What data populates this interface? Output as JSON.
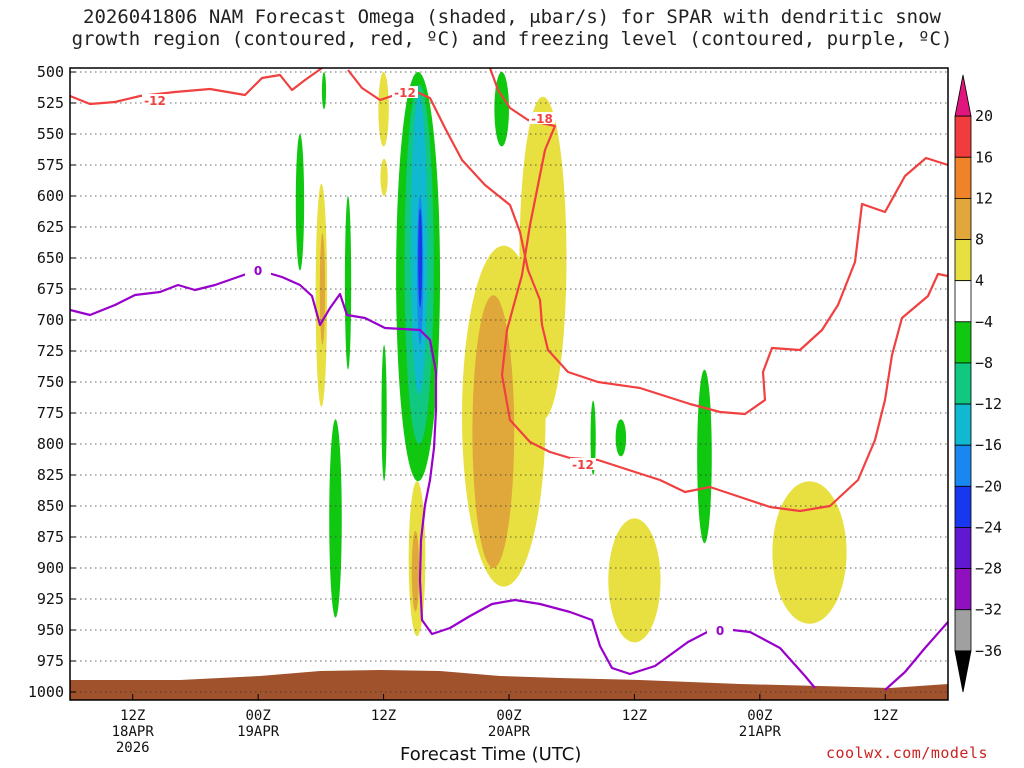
{
  "title": {
    "line1": "2026041806 NAM Forecast Omega (shaded, μbar/s) for SPAR with dendritic snow",
    "line2": "growth region (contoured, red, ºC) and freezing level (contoured, purple, ºC)"
  },
  "xlabel": "Forecast Time (UTC)",
  "credit": "coolwx.com/models",
  "colors": {
    "dgz_contour": "#f04040",
    "freezing_contour": "#9900cc",
    "terrain": "#a0522d"
  },
  "chart_data": {
    "type": "heatmap",
    "y_axis": {
      "label": "",
      "scale": "pressure",
      "range": [
        1000,
        500
      ],
      "ticks": [
        "500",
        "525",
        "550",
        "575",
        "600",
        "625",
        "650",
        "675",
        "700",
        "725",
        "750",
        "775",
        "800",
        "825",
        "850",
        "875",
        "900",
        "925",
        "950",
        "975",
        "1000"
      ]
    },
    "x_axis": {
      "label": "Forecast Time (UTC)",
      "range_hours": [
        0,
        84
      ],
      "ticks": [
        {
          "hour": 6,
          "lines": [
            "12Z",
            "18APR",
            "2026"
          ]
        },
        {
          "hour": 18,
          "lines": [
            "00Z",
            "19APR"
          ]
        },
        {
          "hour": 30,
          "lines": [
            "12Z"
          ]
        },
        {
          "hour": 42,
          "lines": [
            "00Z",
            "20APR"
          ]
        },
        {
          "hour": 54,
          "lines": [
            "12Z"
          ]
        },
        {
          "hour": 66,
          "lines": [
            "00Z",
            "21APR"
          ]
        },
        {
          "hour": 78,
          "lines": [
            "12Z"
          ]
        }
      ]
    },
    "grid": "dotted horizontal",
    "colorbar": {
      "labels": [
        "20",
        "16",
        "12",
        "8",
        "4",
        "−4",
        "−8",
        "−12",
        "−16",
        "−20",
        "−24",
        "−28",
        "−32",
        "−36"
      ],
      "colors": [
        "#e0157e",
        "#f03c3c",
        "#f0822a",
        "#e0a83a",
        "#e8e040",
        "#ffffff",
        "#10c810",
        "#10c880",
        "#10b8d0",
        "#1888f0",
        "#1838f0",
        "#6018d0",
        "#9010c0",
        "#a0a0a0",
        "#000000"
      ]
    },
    "contour_labels": [
      {
        "text": "-12",
        "color": "#f04040"
      },
      {
        "text": "-12",
        "color": "#f04040"
      },
      {
        "text": "-18",
        "color": "#f04040"
      },
      {
        "text": "-12",
        "color": "#f04040"
      },
      {
        "text": "0",
        "color": "#9900cc"
      },
      {
        "text": "0",
        "color": "#9900cc"
      }
    ],
    "shaded_regions": [
      {
        "name": "omega-yellow-a",
        "category": "4 to 8",
        "hour_range": [
          23.5,
          24.6
        ],
        "p_range": [
          770,
          590
        ]
      },
      {
        "name": "omega-orange-a",
        "category": "8 to 12",
        "hour_range": [
          23.9,
          24.4
        ],
        "p_range": [
          720,
          630
        ]
      },
      {
        "name": "omega-green-a",
        "category": "-4 to -8",
        "hour_range": [
          21.6,
          22.4
        ],
        "p_range": [
          660,
          550
        ]
      },
      {
        "name": "omega-green-b",
        "category": "-4 to -8",
        "hour_range": [
          26.3,
          26.9
        ],
        "p_range": [
          740,
          600
        ]
      },
      {
        "name": "omega-green-c",
        "category": "-4 to -8",
        "hour_range": [
          24.1,
          24.5
        ],
        "p_range": [
          530,
          500
        ]
      },
      {
        "name": "omega-green-d",
        "category": "-4 to -8",
        "hour_range": [
          24.8,
          26.0
        ],
        "p_range": [
          940,
          780
        ]
      },
      {
        "name": "omega-yellow-b",
        "category": "4 to 8",
        "hour_range": [
          29.5,
          30.5
        ],
        "p_range": [
          560,
          500
        ]
      },
      {
        "name": "omega-yellow-c",
        "category": "4 to 8",
        "hour_range": [
          29.7,
          30.4
        ],
        "p_range": [
          600,
          570
        ]
      },
      {
        "name": "omega-green-e",
        "category": "-4 to -8",
        "hour_range": [
          29.8,
          30.3
        ],
        "p_range": [
          830,
          720
        ]
      },
      {
        "name": "omega-core-green",
        "category": "-4 to -8",
        "hour_range": [
          31.2,
          35.4
        ],
        "p_range": [
          830,
          500
        ]
      },
      {
        "name": "omega-core-teal",
        "category": "-8 to -12",
        "hour_range": [
          32.0,
          34.8
        ],
        "p_range": [
          800,
          510
        ]
      },
      {
        "name": "omega-core-cyan",
        "category": "-12 to -16",
        "hour_range": [
          32.6,
          34.2
        ],
        "p_range": [
          760,
          520
        ]
      },
      {
        "name": "omega-core-blue",
        "category": "-16 to -20",
        "hour_range": [
          33.2,
          33.8
        ],
        "p_range": [
          720,
          600
        ]
      },
      {
        "name": "omega-core-dblue",
        "category": "-20 to -24",
        "hour_range": [
          33.4,
          33.6
        ],
        "p_range": [
          690,
          610
        ]
      },
      {
        "name": "omega-yellow-d",
        "category": "4 to 8",
        "hour_range": [
          32.4,
          34.0
        ],
        "p_range": [
          955,
          830
        ]
      },
      {
        "name": "omega-orange-d",
        "category": "8 to 12",
        "hour_range": [
          32.7,
          33.4
        ],
        "p_range": [
          935,
          870
        ]
      },
      {
        "name": "omega-yellow-e",
        "category": "4 to 8",
        "hour_range": [
          37.5,
          45.5
        ],
        "p_range": [
          915,
          640
        ]
      },
      {
        "name": "omega-orange-e",
        "category": "8 to 12",
        "hour_range": [
          38.5,
          42.5
        ],
        "p_range": [
          900,
          680
        ]
      },
      {
        "name": "omega-yellow-f",
        "category": "4 to 8",
        "hour_range": [
          43.0,
          47.5
        ],
        "p_range": [
          780,
          520
        ]
      },
      {
        "name": "omega-green-f",
        "category": "-4 to -8",
        "hour_range": [
          40.6,
          42.0
        ],
        "p_range": [
          560,
          500
        ]
      },
      {
        "name": "omega-green-g",
        "category": "-4 to -8",
        "hour_range": [
          49.8,
          50.3
        ],
        "p_range": [
          825,
          765
        ]
      },
      {
        "name": "omega-green-h",
        "category": "-4 to -8",
        "hour_range": [
          52.2,
          53.2
        ],
        "p_range": [
          810,
          780
        ]
      },
      {
        "name": "omega-yellow-g",
        "category": "4 to 8",
        "hour_range": [
          51.5,
          56.5
        ],
        "p_range": [
          960,
          860
        ]
      },
      {
        "name": "omega-green-i",
        "category": "-4 to -8",
        "hour_range": [
          60.0,
          61.4
        ],
        "p_range": [
          880,
          740
        ]
      },
      {
        "name": "omega-yellow-h",
        "category": "4 to 8",
        "hour_range": [
          67.2,
          74.3
        ],
        "p_range": [
          945,
          830
        ]
      }
    ]
  }
}
